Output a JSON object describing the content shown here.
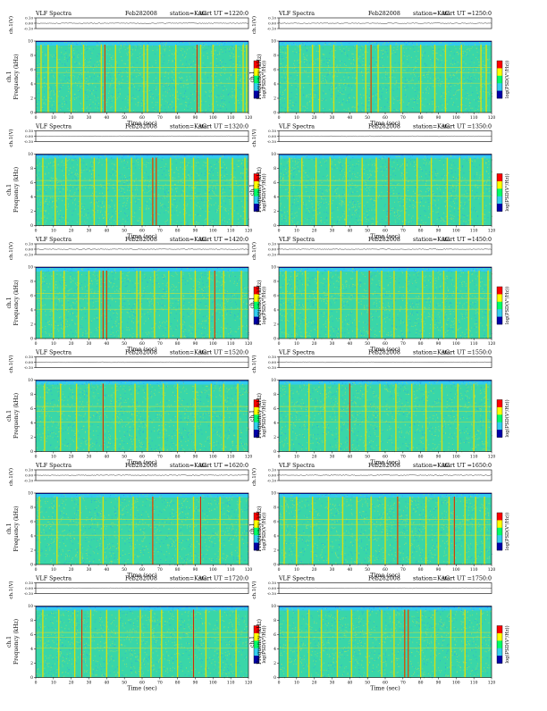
{
  "colors": {
    "background": "#ffffff",
    "axis": "#000000",
    "noise_dense": "#39d6a8",
    "noise_sparse": "#33ccee",
    "colorbar": [
      "#ff0000",
      "#ffff00",
      "#00ff66",
      "#33ccee",
      "#0000aa"
    ]
  },
  "common": {
    "header_left": "VLF Spectra",
    "date": "Feb282008",
    "station": "station=KAG",
    "trace_ylabel": "ch.1(V)",
    "spec_ylabel_ch": "ch.1",
    "spec_ylabel_freq": "Frequency (kHz)",
    "xlabel": "Time (sec)",
    "colorbar_label": "log(PSD(V²/Hz))"
  },
  "chart_data": [
    {
      "type": "heatmap",
      "col": 0,
      "row": 0,
      "start_ut_label": "start UT =1220:0",
      "title": "VLF Spectra Feb282008 station=KAG start UT =1220:0",
      "xlabel": "Time (sec)",
      "ylabel": "Frequency (kHz)",
      "xlim": [
        0,
        120
      ],
      "ylim": [
        0,
        10
      ],
      "trace_ylim": [
        -0.1,
        0.1
      ],
      "x_ticks": [
        "0",
        "10",
        "20",
        "30",
        "40",
        "50",
        "60",
        "70",
        "80",
        "90",
        "100",
        "110",
        "120"
      ],
      "y_ticks": [
        "0",
        "2",
        "4",
        "6",
        "8",
        "10"
      ],
      "trace_ticks": [
        "0.10",
        "0.00",
        "-0.10"
      ],
      "spikes": [
        3,
        7,
        12,
        20,
        27,
        37,
        39,
        45,
        53,
        61,
        63,
        70,
        79,
        91,
        93,
        100,
        113,
        117,
        119
      ],
      "strong_spikes": [
        39,
        91
      ],
      "bands_khz": [
        6.3,
        5.6,
        4.1
      ]
    },
    {
      "type": "heatmap",
      "col": 1,
      "row": 0,
      "start_ut_label": "start UT =1250:0",
      "title": "VLF Spectra Feb282008 station=KAG start UT =1250:0",
      "xlabel": "Time (sec)",
      "ylabel": "Frequency (kHz)",
      "xlim": [
        0,
        120
      ],
      "ylim": [
        0,
        10
      ],
      "trace_ylim": [
        -0.1,
        0.1
      ],
      "x_ticks": [
        "0",
        "10",
        "20",
        "30",
        "40",
        "50",
        "60",
        "70",
        "80",
        "90",
        "100",
        "110",
        "120"
      ],
      "y_ticks": [
        "0",
        "2",
        "4",
        "6",
        "8",
        "10"
      ],
      "trace_ticks": [
        "0.10",
        "0.00",
        "-0.10"
      ],
      "spikes": [
        5,
        12,
        19,
        23,
        31,
        44,
        49,
        52,
        56,
        63,
        69,
        80,
        88,
        94,
        103,
        114,
        117
      ],
      "strong_spikes": [
        52
      ],
      "bands_khz": [
        6.3,
        5.6,
        4.1
      ]
    },
    {
      "type": "heatmap",
      "col": 0,
      "row": 1,
      "start_ut_label": "start UT =1320:0",
      "title": "VLF Spectra Feb282008 station=KAG start UT =1320:0",
      "xlabel": "Time (sec)",
      "ylabel": "Frequency (kHz)",
      "xlim": [
        0,
        120
      ],
      "ylim": [
        0,
        10
      ],
      "trace_ylim": [
        -0.1,
        0.1
      ],
      "x_ticks": [
        "0",
        "10",
        "20",
        "30",
        "40",
        "50",
        "60",
        "70",
        "80",
        "90",
        "100",
        "110",
        "120"
      ],
      "y_ticks": [
        "0",
        "2",
        "4",
        "6",
        "8",
        "10"
      ],
      "trace_ticks": [
        "0.10",
        "0.00",
        "-0.10"
      ],
      "spikes": [
        4,
        11,
        17,
        25,
        33,
        40,
        46,
        54,
        60,
        66,
        68,
        76,
        84,
        89,
        97,
        104,
        111,
        118
      ],
      "strong_spikes": [
        66,
        68
      ],
      "bands_khz": [
        6.3,
        5.6,
        4.1
      ]
    },
    {
      "type": "heatmap",
      "col": 1,
      "row": 1,
      "start_ut_label": "start UT =1350:0",
      "title": "VLF Spectra Feb282008 station=KAG start UT =1350:0",
      "xlabel": "Time (sec)",
      "ylabel": "Frequency (kHz)",
      "xlim": [
        0,
        120
      ],
      "ylim": [
        0,
        10
      ],
      "trace_ylim": [
        -0.1,
        0.1
      ],
      "x_ticks": [
        "0",
        "10",
        "20",
        "30",
        "40",
        "50",
        "60",
        "70",
        "80",
        "90",
        "100",
        "110",
        "120"
      ],
      "y_ticks": [
        "0",
        "2",
        "4",
        "6",
        "8",
        "10"
      ],
      "trace_ticks": [
        "0.10",
        "0.00",
        "-0.10"
      ],
      "spikes": [
        6,
        13,
        21,
        29,
        38,
        47,
        55,
        62,
        71,
        78,
        86,
        95,
        102,
        108,
        115
      ],
      "strong_spikes": [
        62
      ],
      "bands_khz": [
        6.3,
        5.6,
        4.1
      ]
    },
    {
      "type": "heatmap",
      "col": 0,
      "row": 2,
      "start_ut_label": "start UT =1420:0",
      "title": "VLF Spectra Feb282008 station=KAG start UT =1420:0",
      "xlabel": "Time (sec)",
      "ylabel": "Frequency (kHz)",
      "xlim": [
        0,
        120
      ],
      "ylim": [
        0,
        10
      ],
      "trace_ylim": [
        -0.1,
        0.1
      ],
      "x_ticks": [
        "0",
        "10",
        "20",
        "30",
        "40",
        "50",
        "60",
        "70",
        "80",
        "90",
        "100",
        "110",
        "120"
      ],
      "y_ticks": [
        "0",
        "2",
        "4",
        "6",
        "8",
        "10"
      ],
      "trace_ticks": [
        "0.10",
        "0.00",
        "-0.10"
      ],
      "spikes": [
        3,
        10,
        16,
        24,
        30,
        36,
        38,
        40,
        48,
        57,
        59,
        67,
        75,
        82,
        90,
        98,
        101,
        106,
        116
      ],
      "strong_spikes": [
        38,
        40,
        101
      ],
      "bands_khz": [
        6.3,
        5.6,
        4.1
      ]
    },
    {
      "type": "heatmap",
      "col": 1,
      "row": 2,
      "start_ut_label": "start UT =1450:0",
      "title": "VLF Spectra Feb282008 station=KAG start UT =1450:0",
      "xlabel": "Time (sec)",
      "ylabel": "Frequency (kHz)",
      "xlim": [
        0,
        120
      ],
      "ylim": [
        0,
        10
      ],
      "trace_ylim": [
        -0.1,
        0.1
      ],
      "x_ticks": [
        "0",
        "10",
        "20",
        "30",
        "40",
        "50",
        "60",
        "70",
        "80",
        "90",
        "100",
        "110",
        "120"
      ],
      "y_ticks": [
        "0",
        "2",
        "4",
        "6",
        "8",
        "10"
      ],
      "trace_ticks": [
        "0.10",
        "0.00",
        "-0.10"
      ],
      "spikes": [
        4,
        9,
        15,
        22,
        28,
        35,
        44,
        51,
        58,
        65,
        72,
        81,
        87,
        93,
        100,
        107,
        113,
        118
      ],
      "strong_spikes": [
        51
      ],
      "bands_khz": [
        6.3,
        5.6,
        4.1
      ]
    },
    {
      "type": "heatmap",
      "col": 0,
      "row": 3,
      "start_ut_label": "start UT =1520:0",
      "title": "VLF Spectra Feb282008 station=KAG start UT =1520:0",
      "xlabel": "Time (sec)",
      "ylabel": "Frequency (kHz)",
      "xlim": [
        0,
        120
      ],
      "ylim": [
        0,
        10
      ],
      "trace_ylim": [
        -0.1,
        0.1
      ],
      "x_ticks": [
        "0",
        "10",
        "20",
        "30",
        "40",
        "50",
        "60",
        "70",
        "80",
        "90",
        "100",
        "110",
        "120"
      ],
      "y_ticks": [
        "0",
        "2",
        "4",
        "6",
        "8",
        "10"
      ],
      "trace_ticks": [
        "0.10",
        "0.00",
        "-0.10"
      ],
      "spikes": [
        5,
        14,
        23,
        30,
        38,
        45,
        56,
        63,
        72,
        80,
        90,
        99,
        106,
        114
      ],
      "strong_spikes": [
        38
      ],
      "bands_khz": [
        6.3,
        5.6,
        4.1
      ]
    },
    {
      "type": "heatmap",
      "col": 1,
      "row": 3,
      "start_ut_label": "start UT =1550:0",
      "title": "VLF Spectra Feb282008 station=KAG start UT =1550:0",
      "xlabel": "Time (sec)",
      "ylabel": "Frequency (kHz)",
      "xlim": [
        0,
        120
      ],
      "ylim": [
        0,
        10
      ],
      "trace_ylim": [
        -0.1,
        0.1
      ],
      "x_ticks": [
        "0",
        "10",
        "20",
        "30",
        "40",
        "50",
        "60",
        "70",
        "80",
        "90",
        "100",
        "110",
        "120"
      ],
      "y_ticks": [
        "0",
        "2",
        "4",
        "6",
        "8",
        "10"
      ],
      "trace_ticks": [
        "0.10",
        "0.00",
        "-0.10"
      ],
      "spikes": [
        6,
        17,
        26,
        34,
        40,
        49,
        57,
        66,
        75,
        83,
        92,
        101,
        110,
        117
      ],
      "strong_spikes": [
        40
      ],
      "bands_khz": [
        6.3,
        5.6,
        4.1
      ]
    },
    {
      "type": "heatmap",
      "col": 0,
      "row": 4,
      "start_ut_label": "start UT =1620:0",
      "title": "VLF Spectra Feb282008 station=KAG start UT =1620:0",
      "xlabel": "Time (sec)",
      "ylabel": "Frequency (kHz)",
      "xlim": [
        0,
        120
      ],
      "ylim": [
        0,
        10
      ],
      "trace_ylim": [
        -0.1,
        0.1
      ],
      "x_ticks": [
        "0",
        "10",
        "20",
        "30",
        "40",
        "50",
        "60",
        "70",
        "80",
        "90",
        "100",
        "110",
        "120"
      ],
      "y_ticks": [
        "0",
        "2",
        "4",
        "6",
        "8",
        "10"
      ],
      "trace_ticks": [
        "0.10",
        "0.00",
        "-0.10"
      ],
      "spikes": [
        2,
        12,
        25,
        38,
        47,
        55,
        66,
        80,
        89,
        93,
        104,
        115
      ],
      "strong_spikes": [
        66,
        93
      ],
      "bands_khz": [
        6.3,
        5.6,
        4.1
      ]
    },
    {
      "type": "heatmap",
      "col": 1,
      "row": 4,
      "start_ut_label": "start UT =1650:0",
      "title": "VLF Spectra Feb282008 station=KAG start UT =1650:0",
      "xlabel": "Time (sec)",
      "ylabel": "Frequency (kHz)",
      "xlim": [
        0,
        120
      ],
      "ylim": [
        0,
        10
      ],
      "trace_ylim": [
        -0.1,
        0.1
      ],
      "x_ticks": [
        "0",
        "10",
        "20",
        "30",
        "40",
        "50",
        "60",
        "70",
        "80",
        "90",
        "100",
        "110",
        "120"
      ],
      "y_ticks": [
        "0",
        "2",
        "4",
        "6",
        "8",
        "10"
      ],
      "trace_ticks": [
        "0.10",
        "0.00",
        "-0.10"
      ],
      "spikes": [
        3,
        10,
        19,
        28,
        36,
        44,
        52,
        60,
        67,
        74,
        83,
        90,
        96,
        99,
        105,
        111,
        116
      ],
      "strong_spikes": [
        67,
        99
      ],
      "bands_khz": [
        6.3,
        5.6,
        4.1
      ]
    },
    {
      "type": "heatmap",
      "col": 0,
      "row": 5,
      "start_ut_label": "start UT =1720:0",
      "title": "VLF Spectra Feb282008 station=KAG start UT =1720:0",
      "xlabel": "Time (sec)",
      "ylabel": "Frequency (kHz)",
      "xlim": [
        0,
        120
      ],
      "ylim": [
        0,
        10
      ],
      "trace_ylim": [
        -0.1,
        0.1
      ],
      "x_ticks": [
        "0",
        "10",
        "20",
        "30",
        "40",
        "50",
        "60",
        "70",
        "80",
        "90",
        "100",
        "110",
        "120"
      ],
      "y_ticks": [
        "0",
        "2",
        "4",
        "6",
        "8",
        "10"
      ],
      "trace_ticks": [
        "0.10",
        "0.00",
        "-0.10"
      ],
      "spikes": [
        4,
        13,
        22,
        26,
        31,
        40,
        47,
        59,
        65,
        71,
        80,
        89,
        96,
        104,
        113
      ],
      "strong_spikes": [
        26,
        89
      ],
      "bands_khz": [
        6.3,
        5.6,
        4.1
      ]
    },
    {
      "type": "heatmap",
      "col": 1,
      "row": 5,
      "start_ut_label": "start UT =1750:0",
      "title": "VLF Spectra Feb282008 station=KAG start UT =1750:0",
      "xlabel": "Time (sec)",
      "ylabel": "Frequency (kHz)",
      "xlim": [
        0,
        120
      ],
      "ylim": [
        0,
        10
      ],
      "trace_ylim": [
        -0.1,
        0.1
      ],
      "x_ticks": [
        "0",
        "10",
        "20",
        "30",
        "40",
        "50",
        "60",
        "70",
        "80",
        "90",
        "100",
        "110",
        "120"
      ],
      "y_ticks": [
        "0",
        "2",
        "4",
        "6",
        "8",
        "10"
      ],
      "trace_ticks": [
        "0.10",
        "0.00",
        "-0.10"
      ],
      "spikes": [
        5,
        11,
        17,
        24,
        33,
        41,
        50,
        58,
        65,
        71,
        73,
        80,
        88,
        97,
        105,
        114
      ],
      "strong_spikes": [
        71,
        73
      ],
      "bands_khz": [
        6.3,
        5.6,
        4.1
      ]
    }
  ]
}
